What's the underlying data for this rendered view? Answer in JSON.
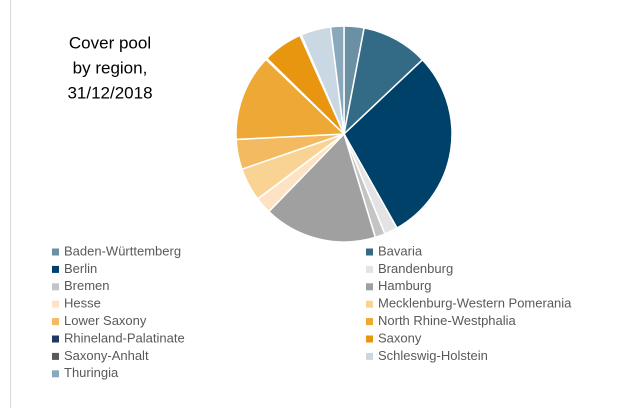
{
  "chart_data": {
    "type": "pie",
    "title": [
      "Cover pool",
      "by region,",
      "31/12/2018"
    ],
    "categories": [
      "Baden-Württemberg",
      "Bavaria",
      "Berlin",
      "Brandenburg",
      "Bremen",
      "Hamburg",
      "Hesse",
      "Mecklenburg-Western Pomerania",
      "Lower Saxony",
      "North Rhine-Westphalia",
      "Rhineland-Palatinate",
      "Saxony",
      "Saxony-Anhalt",
      "Schleswig-Holstein",
      "Thuringia"
    ],
    "values": [
      3,
      10,
      29,
      2,
      1.5,
      17,
      2.5,
      5,
      4.5,
      13,
      0.2,
      6,
      0.2,
      4.5,
      2
    ],
    "colors": [
      "#6b8fa3",
      "#336b87",
      "#00416a",
      "#e3e3e3",
      "#c4c4c4",
      "#a0a0a0",
      "#fde3c3",
      "#f8d394",
      "#f4ba62",
      "#eda835",
      "#1f3864",
      "#e8950f",
      "#595959",
      "#c9d8e3",
      "#8aa8bb"
    ],
    "legend": "bottom"
  }
}
